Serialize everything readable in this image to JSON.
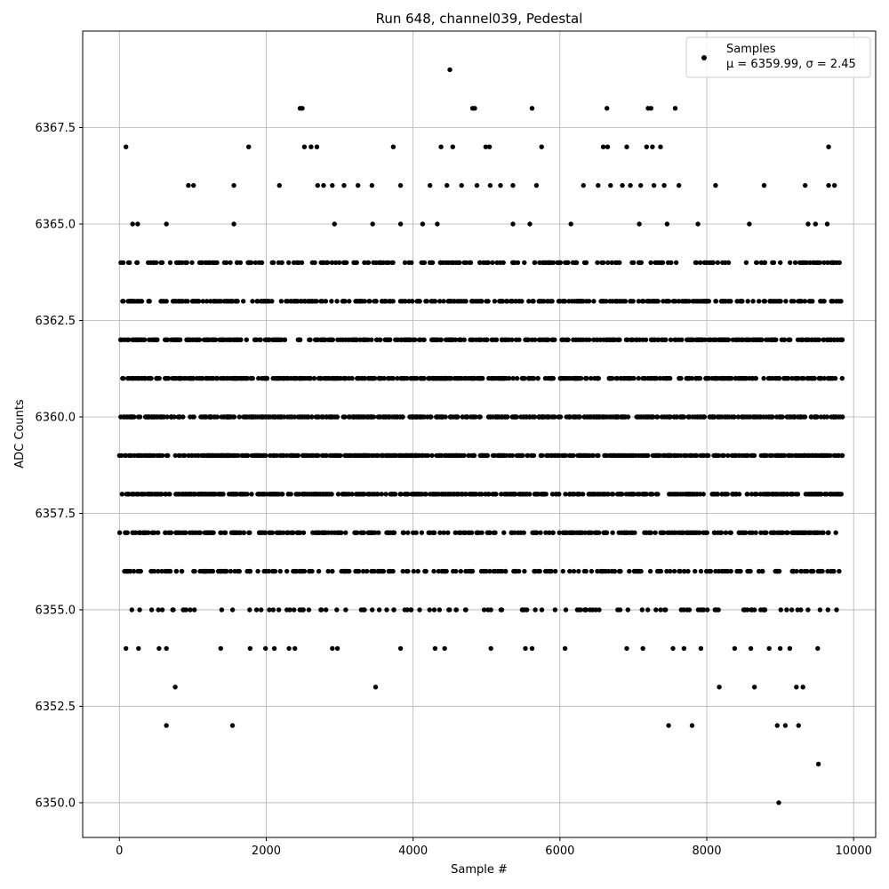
{
  "chart_data": {
    "type": "scatter",
    "title": "Run 648, channel039, Pedestal",
    "xlabel": "Sample #",
    "ylabel": "ADC Counts",
    "xlim": [
      -500,
      10300
    ],
    "ylim": [
      6349.1,
      6370.0
    ],
    "x_ticks": [
      0,
      2000,
      4000,
      6000,
      8000,
      10000
    ],
    "x_tick_labels": [
      "0",
      "2000",
      "4000",
      "6000",
      "8000",
      "10000"
    ],
    "y_ticks": [
      6350.0,
      6352.5,
      6355.0,
      6357.5,
      6360.0,
      6362.5,
      6365.0,
      6367.5
    ],
    "y_tick_labels": [
      "6350.0",
      "6352.5",
      "6355.0",
      "6357.5",
      "6360.0",
      "6362.5",
      "6365.0",
      "6367.5"
    ],
    "grid": true,
    "legend_position": "top-right",
    "marker_color": "#000000",
    "series": [
      {
        "name": "Samples",
        "stats_label": "μ = 6359.99, σ = 2.45",
        "points": [
          {
            "x": 90,
            "y": 6367
          },
          {
            "x": 1760,
            "y": 6367
          },
          {
            "x": 2520,
            "y": 6367
          },
          {
            "x": 2610,
            "y": 6367
          },
          {
            "x": 2690,
            "y": 6367
          },
          {
            "x": 3730,
            "y": 6367
          },
          {
            "x": 4380,
            "y": 6367
          },
          {
            "x": 4540,
            "y": 6367
          },
          {
            "x": 4990,
            "y": 6367
          },
          {
            "x": 5040,
            "y": 6367
          },
          {
            "x": 5750,
            "y": 6367
          },
          {
            "x": 6590,
            "y": 6367
          },
          {
            "x": 6650,
            "y": 6367
          },
          {
            "x": 6910,
            "y": 6367
          },
          {
            "x": 7180,
            "y": 6367
          },
          {
            "x": 7260,
            "y": 6367
          },
          {
            "x": 7370,
            "y": 6367
          },
          {
            "x": 9660,
            "y": 6367
          },
          {
            "x": 2460,
            "y": 6368
          },
          {
            "x": 2490,
            "y": 6368
          },
          {
            "x": 4810,
            "y": 6368
          },
          {
            "x": 4840,
            "y": 6368
          },
          {
            "x": 5620,
            "y": 6368
          },
          {
            "x": 6640,
            "y": 6368
          },
          {
            "x": 7200,
            "y": 6368
          },
          {
            "x": 7240,
            "y": 6368
          },
          {
            "x": 7570,
            "y": 6368
          },
          {
            "x": 4500,
            "y": 6369
          },
          {
            "x": 940,
            "y": 6366
          },
          {
            "x": 1010,
            "y": 6366
          },
          {
            "x": 1560,
            "y": 6366
          },
          {
            "x": 2180,
            "y": 6366
          },
          {
            "x": 2700,
            "y": 6366
          },
          {
            "x": 2780,
            "y": 6366
          },
          {
            "x": 2900,
            "y": 6366
          },
          {
            "x": 3060,
            "y": 6366
          },
          {
            "x": 3250,
            "y": 6366
          },
          {
            "x": 3440,
            "y": 6366
          },
          {
            "x": 3830,
            "y": 6366
          },
          {
            "x": 4230,
            "y": 6366
          },
          {
            "x": 4460,
            "y": 6366
          },
          {
            "x": 4660,
            "y": 6366
          },
          {
            "x": 4870,
            "y": 6366
          },
          {
            "x": 5050,
            "y": 6366
          },
          {
            "x": 5190,
            "y": 6366
          },
          {
            "x": 5360,
            "y": 6366
          },
          {
            "x": 5680,
            "y": 6366
          },
          {
            "x": 6320,
            "y": 6366
          },
          {
            "x": 6520,
            "y": 6366
          },
          {
            "x": 6690,
            "y": 6366
          },
          {
            "x": 6850,
            "y": 6366
          },
          {
            "x": 6960,
            "y": 6366
          },
          {
            "x": 7100,
            "y": 6366
          },
          {
            "x": 7280,
            "y": 6366
          },
          {
            "x": 7420,
            "y": 6366
          },
          {
            "x": 7620,
            "y": 6366
          },
          {
            "x": 8120,
            "y": 6366
          },
          {
            "x": 8780,
            "y": 6366
          },
          {
            "x": 9340,
            "y": 6366
          },
          {
            "x": 9660,
            "y": 6366
          },
          {
            "x": 9740,
            "y": 6366
          },
          {
            "x": 180,
            "y": 6365
          },
          {
            "x": 250,
            "y": 6365
          },
          {
            "x": 640,
            "y": 6365
          },
          {
            "x": 1560,
            "y": 6365
          },
          {
            "x": 2930,
            "y": 6365
          },
          {
            "x": 3450,
            "y": 6365
          },
          {
            "x": 3830,
            "y": 6365
          },
          {
            "x": 4130,
            "y": 6365
          },
          {
            "x": 4330,
            "y": 6365
          },
          {
            "x": 5360,
            "y": 6365
          },
          {
            "x": 5590,
            "y": 6365
          },
          {
            "x": 6150,
            "y": 6365
          },
          {
            "x": 7080,
            "y": 6365
          },
          {
            "x": 7460,
            "y": 6365
          },
          {
            "x": 7880,
            "y": 6365
          },
          {
            "x": 8580,
            "y": 6365
          },
          {
            "x": 9380,
            "y": 6365
          },
          {
            "x": 9480,
            "y": 6365
          },
          {
            "x": 9640,
            "y": 6365
          },
          {
            "x": 640,
            "y": 6352
          },
          {
            "x": 1540,
            "y": 6352
          },
          {
            "x": 7480,
            "y": 6352
          },
          {
            "x": 7800,
            "y": 6352
          },
          {
            "x": 8960,
            "y": 6352
          },
          {
            "x": 9070,
            "y": 6352
          },
          {
            "x": 9250,
            "y": 6352
          },
          {
            "x": 760,
            "y": 6353
          },
          {
            "x": 3490,
            "y": 6353
          },
          {
            "x": 8170,
            "y": 6353
          },
          {
            "x": 8650,
            "y": 6353
          },
          {
            "x": 9220,
            "y": 6353
          },
          {
            "x": 9310,
            "y": 6353
          },
          {
            "x": 90,
            "y": 6354
          },
          {
            "x": 260,
            "y": 6354
          },
          {
            "x": 540,
            "y": 6354
          },
          {
            "x": 640,
            "y": 6354
          },
          {
            "x": 1380,
            "y": 6354
          },
          {
            "x": 1780,
            "y": 6354
          },
          {
            "x": 1990,
            "y": 6354
          },
          {
            "x": 2110,
            "y": 6354
          },
          {
            "x": 2310,
            "y": 6354
          },
          {
            "x": 2390,
            "y": 6354
          },
          {
            "x": 2900,
            "y": 6354
          },
          {
            "x": 2970,
            "y": 6354
          },
          {
            "x": 3830,
            "y": 6354
          },
          {
            "x": 4300,
            "y": 6354
          },
          {
            "x": 4430,
            "y": 6354
          },
          {
            "x": 5060,
            "y": 6354
          },
          {
            "x": 5530,
            "y": 6354
          },
          {
            "x": 5620,
            "y": 6354
          },
          {
            "x": 6070,
            "y": 6354
          },
          {
            "x": 6910,
            "y": 6354
          },
          {
            "x": 7130,
            "y": 6354
          },
          {
            "x": 7540,
            "y": 6354
          },
          {
            "x": 7690,
            "y": 6354
          },
          {
            "x": 7920,
            "y": 6354
          },
          {
            "x": 8380,
            "y": 6354
          },
          {
            "x": 8600,
            "y": 6354
          },
          {
            "x": 8850,
            "y": 6354
          },
          {
            "x": 9000,
            "y": 6354
          },
          {
            "x": 9130,
            "y": 6354
          },
          {
            "x": 9510,
            "y": 6354
          },
          {
            "x": 9520,
            "y": 6351
          },
          {
            "x": 8980,
            "y": 6350
          }
        ],
        "bands": [
          {
            "y": 6364,
            "count": 230
          },
          {
            "y": 6363,
            "count": 340
          },
          {
            "y": 6362,
            "count": 440
          },
          {
            "y": 6361,
            "count": 500
          },
          {
            "y": 6360,
            "count": 560
          },
          {
            "y": 6359,
            "count": 540
          },
          {
            "y": 6358,
            "count": 480
          },
          {
            "y": 6357,
            "count": 330
          },
          {
            "y": 6356,
            "count": 260
          },
          {
            "y": 6355,
            "count": 120
          }
        ],
        "x_range": [
          0,
          9850
        ]
      }
    ]
  }
}
